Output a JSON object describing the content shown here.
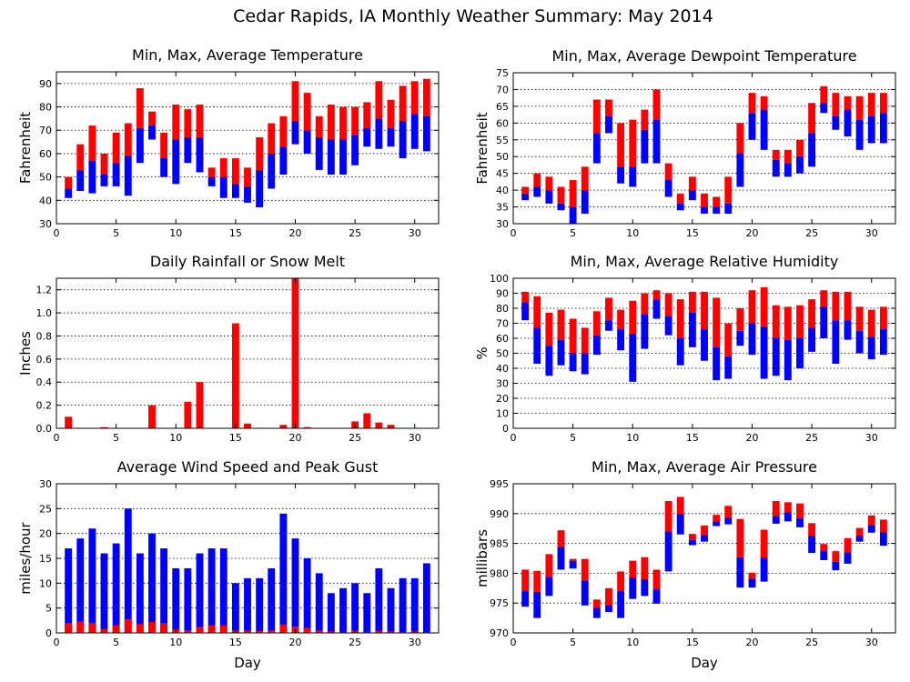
{
  "title": "Cedar Rapids, IA Monthly Weather Summary: May 2014",
  "colors": {
    "upper": "#ff0000",
    "lower": "#0000ff",
    "frame": "#000000",
    "grid": "#000000"
  },
  "chart_data": [
    {
      "id": "temperature",
      "type": "bar",
      "style": "floating-range",
      "title": "Min, Max, Average Temperature",
      "xlabel": "",
      "ylabel": "Fahrenheit",
      "xlim": [
        0,
        32
      ],
      "ylim": [
        30,
        95
      ],
      "xticks": [
        0,
        5,
        10,
        15,
        20,
        25,
        30
      ],
      "yticks": [
        30,
        40,
        50,
        60,
        70,
        80,
        90
      ],
      "grid": true,
      "x": [
        1,
        2,
        3,
        4,
        5,
        6,
        7,
        8,
        9,
        10,
        11,
        12,
        13,
        14,
        15,
        16,
        17,
        18,
        19,
        20,
        21,
        22,
        23,
        24,
        25,
        26,
        27,
        28,
        29,
        30,
        31
      ],
      "series": [
        {
          "key": "min",
          "values": [
            41,
            44,
            43,
            46,
            46,
            42,
            56,
            66,
            50,
            47,
            56,
            52,
            46,
            41,
            41,
            39,
            37,
            45,
            51,
            64,
            60,
            53,
            51,
            51,
            55,
            63,
            62,
            63,
            58,
            62,
            61
          ]
        },
        {
          "key": "avg",
          "values": [
            45,
            53,
            57,
            51,
            56,
            59,
            71,
            72,
            58,
            66,
            67,
            67,
            50,
            50,
            47,
            46,
            53,
            60,
            63,
            74,
            70,
            67,
            66,
            66,
            68,
            71,
            75,
            71,
            74,
            77,
            76
          ]
        },
        {
          "key": "max",
          "values": [
            50,
            64,
            72,
            60,
            69,
            73,
            88,
            78,
            69,
            81,
            79,
            81,
            54,
            58,
            58,
            54,
            67,
            73,
            76,
            91,
            86,
            76,
            81,
            80,
            80,
            82,
            91,
            83,
            89,
            91,
            92
          ]
        }
      ]
    },
    {
      "id": "dewpoint",
      "type": "bar",
      "style": "floating-range",
      "title": "Min, Max, Average Dewpoint Temperature",
      "xlabel": "",
      "ylabel": "Fahrenheit",
      "xlim": [
        0,
        32
      ],
      "ylim": [
        30,
        75
      ],
      "xticks": [
        0,
        5,
        10,
        15,
        20,
        25,
        30
      ],
      "yticks": [
        30,
        35,
        40,
        45,
        50,
        55,
        60,
        65,
        70,
        75
      ],
      "grid": true,
      "x": [
        1,
        2,
        3,
        4,
        5,
        6,
        7,
        8,
        9,
        10,
        11,
        12,
        13,
        14,
        15,
        16,
        17,
        18,
        19,
        20,
        21,
        22,
        23,
        24,
        25,
        26,
        27,
        28,
        29,
        30,
        31
      ],
      "series": [
        {
          "key": "min",
          "values": [
            37,
            38,
            36,
            34,
            30,
            33,
            48,
            57,
            42,
            41,
            48,
            48,
            38,
            34,
            37,
            33,
            33,
            33,
            41,
            55,
            52,
            44,
            44,
            45,
            47,
            63,
            58,
            56,
            52,
            54,
            54
          ]
        },
        {
          "key": "avg",
          "values": [
            39,
            41,
            40,
            36,
            35,
            40,
            57,
            62,
            47,
            47,
            58,
            61,
            43,
            36,
            40,
            35,
            35,
            36,
            51,
            63,
            64,
            49,
            48,
            50,
            57,
            66,
            62,
            64,
            61,
            62,
            63
          ]
        },
        {
          "key": "max",
          "values": [
            41,
            45,
            44,
            41,
            43,
            47,
            67,
            67,
            60,
            61,
            64,
            70,
            48,
            39,
            44,
            39,
            38,
            44,
            60,
            69,
            68,
            52,
            52,
            55,
            66,
            71,
            69,
            68,
            68,
            69,
            69
          ]
        }
      ]
    },
    {
      "id": "rainfall",
      "type": "bar",
      "style": "simple",
      "title": "Daily Rainfall or Snow Melt",
      "xlabel": "",
      "ylabel": "Inches",
      "xlim": [
        0,
        32
      ],
      "ylim": [
        0,
        1.3
      ],
      "xticks": [
        0,
        5,
        10,
        15,
        20,
        25,
        30
      ],
      "yticks": [
        "0.0",
        "0.2",
        "0.4",
        "0.6",
        "0.8",
        "1.0",
        "1.2"
      ],
      "grid": true,
      "x": [
        1,
        2,
        3,
        4,
        5,
        6,
        7,
        8,
        9,
        10,
        11,
        12,
        13,
        14,
        15,
        16,
        17,
        18,
        19,
        20,
        21,
        22,
        23,
        24,
        25,
        26,
        27,
        28,
        29,
        30,
        31
      ],
      "series": [
        {
          "key": "rain",
          "values": [
            0.1,
            0,
            0,
            0.01,
            0,
            0,
            0,
            0.2,
            0,
            0,
            0.23,
            0.4,
            0,
            0,
            0.91,
            0.04,
            0,
            0,
            0.03,
            1.3,
            0.01,
            0,
            0,
            0,
            0.06,
            0.13,
            0.05,
            0.03,
            0,
            0,
            0
          ]
        }
      ]
    },
    {
      "id": "humidity",
      "type": "bar",
      "style": "floating-range",
      "title": "Min, Max, Average Relative Humidity",
      "xlabel": "",
      "ylabel": "%",
      "xlim": [
        0,
        32
      ],
      "ylim": [
        0,
        100
      ],
      "xticks": [
        0,
        5,
        10,
        15,
        20,
        25,
        30
      ],
      "yticks": [
        0,
        10,
        20,
        30,
        40,
        50,
        60,
        70,
        80,
        90,
        100
      ],
      "grid": true,
      "x": [
        1,
        2,
        3,
        4,
        5,
        6,
        7,
        8,
        9,
        10,
        11,
        12,
        13,
        14,
        15,
        16,
        17,
        18,
        19,
        20,
        21,
        22,
        23,
        24,
        25,
        26,
        27,
        28,
        29,
        30,
        31
      ],
      "series": [
        {
          "key": "min",
          "values": [
            72,
            43,
            35,
            42,
            38,
            36,
            49,
            65,
            52,
            31,
            53,
            73,
            62,
            42,
            54,
            45,
            32,
            33,
            55,
            49,
            33,
            35,
            32,
            40,
            51,
            60,
            43,
            59,
            50,
            46,
            49
          ]
        },
        {
          "key": "avg",
          "values": [
            84,
            67,
            55,
            59,
            50,
            50,
            62,
            72,
            66,
            63,
            76,
            86,
            75,
            60,
            77,
            66,
            54,
            48,
            65,
            70,
            68,
            60,
            59,
            60,
            67,
            81,
            72,
            72,
            65,
            61,
            66
          ]
        },
        {
          "key": "max",
          "values": [
            91,
            88,
            77,
            79,
            73,
            67,
            78,
            87,
            79,
            85,
            90,
            92,
            90,
            86,
            91,
            91,
            87,
            70,
            80,
            92,
            94,
            82,
            81,
            82,
            86,
            92,
            91,
            91,
            81,
            79,
            81
          ]
        }
      ]
    },
    {
      "id": "wind",
      "type": "bar",
      "style": "overlay",
      "title": "Average Wind Speed and Peak Gust",
      "xlabel": "Day",
      "ylabel": "miles/hour",
      "xlim": [
        0,
        32
      ],
      "ylim": [
        0,
        30
      ],
      "xticks": [
        0,
        5,
        10,
        15,
        20,
        25,
        30
      ],
      "yticks": [
        0,
        5,
        10,
        15,
        20,
        25,
        30
      ],
      "grid": true,
      "x": [
        1,
        2,
        3,
        4,
        5,
        6,
        7,
        8,
        9,
        10,
        11,
        12,
        13,
        14,
        15,
        16,
        17,
        18,
        19,
        20,
        21,
        22,
        23,
        24,
        25,
        26,
        27,
        28,
        29,
        30,
        31
      ],
      "series": [
        {
          "key": "gust",
          "values": [
            17,
            19,
            21,
            16,
            18,
            25,
            16,
            20,
            17,
            13,
            13,
            16,
            17,
            17,
            10,
            11,
            11,
            13,
            24,
            19,
            15,
            12,
            8,
            9,
            10,
            8,
            13,
            9,
            11,
            11,
            14
          ]
        },
        {
          "key": "avg",
          "values": [
            2,
            2.3,
            2,
            0.8,
            1.5,
            2.8,
            1.8,
            2.2,
            2,
            0.7,
            0.5,
            1.2,
            1.5,
            1.5,
            0.5,
            0.5,
            0.4,
            0.5,
            1.7,
            1.3,
            1,
            0.5,
            0.3,
            0.2,
            0.5,
            0.2,
            0.4,
            0.3,
            0.2,
            0.3,
            0.2
          ]
        }
      ]
    },
    {
      "id": "pressure",
      "type": "bar",
      "style": "floating-range",
      "title": "Min, Max, Average Air Pressure",
      "xlabel": "Day",
      "ylabel": "millibars",
      "xlim": [
        0,
        32
      ],
      "ylim": [
        970,
        995
      ],
      "xticks": [
        0,
        5,
        10,
        15,
        20,
        25,
        30
      ],
      "yticks": [
        970,
        975,
        980,
        985,
        990,
        995
      ],
      "grid": true,
      "x": [
        1,
        2,
        3,
        4,
        5,
        6,
        7,
        8,
        9,
        10,
        11,
        12,
        13,
        14,
        15,
        16,
        17,
        18,
        19,
        20,
        21,
        22,
        23,
        24,
        25,
        26,
        27,
        28,
        29,
        30,
        31
      ],
      "series": [
        {
          "key": "min",
          "values": [
            974.4,
            972.5,
            976.2,
            980.6,
            980.8,
            974.6,
            972.5,
            973.5,
            972.5,
            975.7,
            976.2,
            974.9,
            980.3,
            986.5,
            984.7,
            985.3,
            987.9,
            988.2,
            977.6,
            977.6,
            978.6,
            988.3,
            988.7,
            987.7,
            983.4,
            982.2,
            980.5,
            981.6,
            985.3,
            986.8,
            984.6
          ]
        },
        {
          "key": "avg",
          "values": [
            977,
            976.9,
            979.4,
            984.4,
            982.1,
            978.8,
            974.2,
            974.7,
            977,
            979.3,
            979,
            977.3,
            987,
            990,
            985.6,
            986.4,
            988.7,
            989.3,
            982.7,
            979.1,
            982.6,
            989.6,
            990.2,
            989.2,
            986.3,
            983.7,
            981.9,
            983.5,
            986.3,
            988.1,
            986.9
          ]
        },
        {
          "key": "max",
          "values": [
            980.6,
            980.4,
            983.2,
            987.2,
            982.4,
            982.4,
            975.6,
            977.5,
            980.3,
            982.1,
            982.7,
            980.6,
            992.1,
            992.8,
            986.6,
            988,
            989.8,
            991.3,
            989.1,
            980.1,
            987.3,
            992.1,
            991.9,
            991.7,
            988.4,
            984.9,
            983.7,
            985.9,
            987.6,
            989.7,
            989
          ]
        }
      ]
    }
  ]
}
